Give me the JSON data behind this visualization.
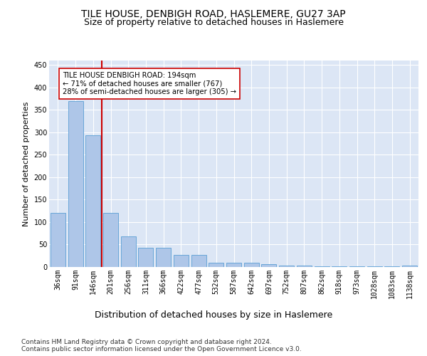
{
  "title": "TILE HOUSE, DENBIGH ROAD, HASLEMERE, GU27 3AP",
  "subtitle": "Size of property relative to detached houses in Haslemere",
  "xlabel": "Distribution of detached houses by size in Haslemere",
  "ylabel": "Number of detached properties",
  "categories": [
    "36sqm",
    "91sqm",
    "146sqm",
    "201sqm",
    "256sqm",
    "311sqm",
    "366sqm",
    "422sqm",
    "477sqm",
    "532sqm",
    "587sqm",
    "642sqm",
    "697sqm",
    "752sqm",
    "807sqm",
    "862sqm",
    "918sqm",
    "973sqm",
    "1028sqm",
    "1083sqm",
    "1138sqm"
  ],
  "values": [
    120,
    370,
    293,
    120,
    68,
    43,
    43,
    27,
    27,
    10,
    10,
    10,
    7,
    3,
    3,
    1,
    1,
    1,
    1,
    1,
    3
  ],
  "bar_color": "#aec6e8",
  "bar_edge_color": "#5a9fd4",
  "background_color": "#dce6f5",
  "grid_color": "#ffffff",
  "vline_color": "#cc0000",
  "annotation_text": "TILE HOUSE DENBIGH ROAD: 194sqm\n← 71% of detached houses are smaller (767)\n28% of semi-detached houses are larger (305) →",
  "annotation_box_color": "#ffffff",
  "annotation_box_edge_color": "#cc0000",
  "ylim": [
    0,
    460
  ],
  "yticks": [
    0,
    50,
    100,
    150,
    200,
    250,
    300,
    350,
    400,
    450
  ],
  "footer": "Contains HM Land Registry data © Crown copyright and database right 2024.\nContains public sector information licensed under the Open Government Licence v3.0.",
  "title_fontsize": 10,
  "subtitle_fontsize": 9,
  "ylabel_fontsize": 8,
  "xlabel_fontsize": 9,
  "tick_fontsize": 7,
  "footer_fontsize": 6.5
}
